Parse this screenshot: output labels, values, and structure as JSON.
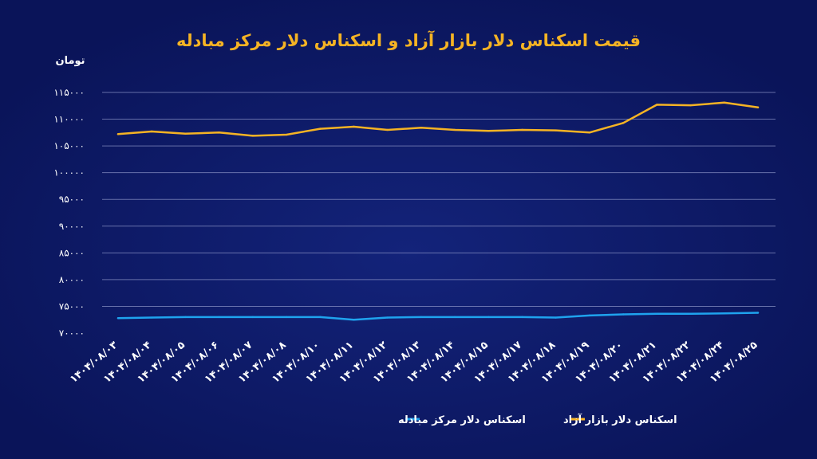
{
  "chart_data": {
    "type": "line",
    "title": "قیمت اسکناس دلار بازار آزاد و اسکناس دلار مرکز مبادله",
    "ylabel": "تومان",
    "xlabel": "",
    "ylim": [
      70000,
      115000
    ],
    "yticks": [
      {
        "value": 115000,
        "label": "۱۱۵۰۰۰"
      },
      {
        "value": 110000,
        "label": "۱۱۰۰۰۰"
      },
      {
        "value": 105000,
        "label": "۱۰۵۰۰۰"
      },
      {
        "value": 100000,
        "label": "۱۰۰۰۰۰"
      },
      {
        "value": 95000,
        "label": "۹۵۰۰۰"
      },
      {
        "value": 90000,
        "label": "۹۰۰۰۰"
      },
      {
        "value": 85000,
        "label": "۸۵۰۰۰"
      },
      {
        "value": 80000,
        "label": "۸۰۰۰۰"
      },
      {
        "value": 75000,
        "label": "۷۵۰۰۰"
      },
      {
        "value": 70000,
        "label": "۷۰۰۰۰"
      }
    ],
    "grid": true,
    "legend_position": "bottom",
    "categories": [
      "۱۴۰۴/۰۸/۰۳",
      "۱۴۰۴/۰۸/۰۴",
      "۱۴۰۴/۰۸/۰۵",
      "۱۴۰۴/۰۸/۰۶",
      "۱۴۰۴/۰۸/۰۷",
      "۱۴۰۴/۰۸/۰۸",
      "۱۴۰۴/۰۸/۱۰",
      "۱۴۰۴/۰۸/۱۱",
      "۱۴۰۴/۰۸/۱۲",
      "۱۴۰۴/۰۸/۱۳",
      "۱۴۰۴/۰۸/۱۴",
      "۱۴۰۴/۰۸/۱۵",
      "۱۴۰۴/۰۸/۱۷",
      "۱۴۰۴/۰۸/۱۸",
      "۱۴۰۴/۰۸/۱۹",
      "۱۴۰۴/۰۸/۲۰",
      "۱۴۰۴/۰۸/۲۱",
      "۱۴۰۴/۰۸/۲۲",
      "۱۴۰۴/۰۸/۲۴",
      "۱۴۰۴/۰۸/۲۵"
    ],
    "series": [
      {
        "name": "اسکناس دلار بازار آزاد",
        "color": "#f5b324",
        "values": [
          107200,
          107700,
          107300,
          107500,
          106900,
          107100,
          108200,
          108600,
          108000,
          108400,
          108000,
          107800,
          108000,
          107900,
          107500,
          109300,
          112700,
          112600,
          113100,
          112200
        ]
      },
      {
        "name": "اسکناس دلار مرکز مبادله",
        "color": "#1fa3ee",
        "values": [
          72800,
          72900,
          73000,
          73000,
          73000,
          73000,
          73000,
          72500,
          72900,
          73000,
          73000,
          73000,
          73000,
          72900,
          73300,
          73500,
          73600,
          73600,
          73700,
          73800
        ]
      }
    ]
  }
}
